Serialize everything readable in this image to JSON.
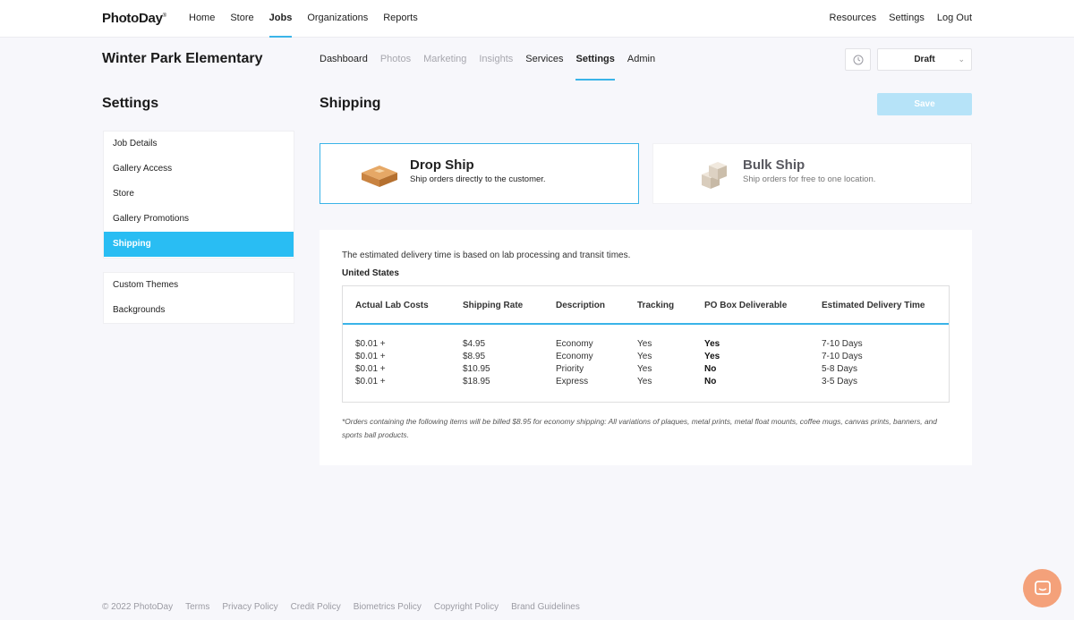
{
  "brand": {
    "logo": "PhotoDay",
    "logo_mark": "®"
  },
  "topnav": {
    "links": [
      "Home",
      "Store",
      "Jobs",
      "Organizations",
      "Reports"
    ],
    "active": "Jobs",
    "right_links": [
      "Resources",
      "Settings",
      "Log Out"
    ]
  },
  "job": {
    "title": "Winter Park Elementary"
  },
  "subnav": {
    "tabs": [
      {
        "label": "Dashboard",
        "state": "normal"
      },
      {
        "label": "Photos",
        "state": "muted"
      },
      {
        "label": "Marketing",
        "state": "muted"
      },
      {
        "label": "Insights",
        "state": "muted"
      },
      {
        "label": "Services",
        "state": "normal"
      },
      {
        "label": "Settings",
        "state": "active"
      },
      {
        "label": "Admin",
        "state": "normal"
      }
    ]
  },
  "status_select": {
    "value": "Draft"
  },
  "sidebar": {
    "title": "Settings",
    "group1": [
      "Job Details",
      "Gallery Access",
      "Store",
      "Gallery Promotions",
      "Shipping"
    ],
    "active": "Shipping",
    "group2": [
      "Custom Themes",
      "Backgrounds"
    ]
  },
  "main": {
    "title": "Shipping",
    "save_label": "Save",
    "options": {
      "drop": {
        "name": "Drop Ship",
        "desc": "Ship orders directly to the customer."
      },
      "bulk": {
        "name": "Bulk Ship",
        "desc": "Ship orders for free to one location."
      }
    },
    "intro": "The estimated delivery time is based on lab processing and transit times.",
    "country": "United States",
    "table": {
      "headers": [
        "Actual Lab Costs",
        "Shipping Rate",
        "Description",
        "Tracking",
        "PO Box Deliverable",
        "Estimated Delivery Time"
      ],
      "rows": [
        [
          "$0.01 +",
          "$4.95",
          "Economy",
          "Yes",
          "Yes",
          "7-10 Days"
        ],
        [
          "$0.01 +",
          "$8.95",
          "Economy",
          "Yes",
          "Yes",
          "7-10 Days"
        ],
        [
          "$0.01 +",
          "$10.95",
          "Priority",
          "Yes",
          "No",
          "5-8 Days"
        ],
        [
          "$0.01 +",
          "$18.95",
          "Express",
          "Yes",
          "No",
          "3-5 Days"
        ]
      ]
    },
    "footnote": "*Orders containing the following items will be billed $8.95 for economy shipping: All variations of plaques, metal prints, metal float mounts, coffee mugs, canvas prints, banners, and sports ball products."
  },
  "footer": {
    "copyright": "© 2022 PhotoDay",
    "links": [
      "Terms",
      "Privacy Policy",
      "Credit Policy",
      "Biometrics Policy",
      "Copyright Policy",
      "Brand Guidelines"
    ]
  },
  "colors": {
    "accent": "#3ab4e8",
    "sidebar_active": "#29bdf3",
    "save_disabled": "#b6e3f8",
    "chat": "#f4a17a"
  },
  "icons": [
    "history-icon",
    "chevron-down-icon",
    "drop-ship-box-icon",
    "bulk-ship-boxes-icon",
    "chat-icon"
  ]
}
